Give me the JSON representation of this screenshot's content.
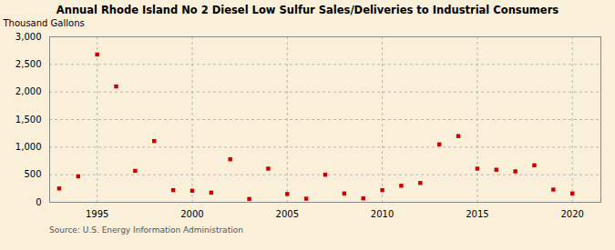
{
  "chart_data": {
    "type": "scatter",
    "title": "Annual Rhode Island No 2 Diesel Low Sulfur Sales/Deliveries to Industrial Consumers",
    "ylabel": "Thousand Gallons",
    "source": "Source: U.S. Energy Information Administration",
    "x": [
      1993,
      1994,
      1995,
      1996,
      1997,
      1998,
      1999,
      2000,
      2001,
      2002,
      2003,
      2004,
      2005,
      2006,
      2007,
      2008,
      2009,
      2010,
      2011,
      2012,
      2013,
      2014,
      2015,
      2016,
      2017,
      2018,
      2019,
      2020
    ],
    "values": [
      250,
      470,
      2680,
      2100,
      570,
      1110,
      220,
      210,
      175,
      780,
      60,
      610,
      150,
      65,
      500,
      160,
      70,
      220,
      300,
      350,
      1050,
      1200,
      610,
      590,
      560,
      670,
      230,
      160
    ],
    "color": "#cc0000",
    "marker": "square",
    "xlim": [
      1992.5,
      2021.5
    ],
    "xticks": [
      1995,
      2000,
      2005,
      2010,
      2015,
      2020
    ],
    "ylim": [
      0,
      3000
    ],
    "yticks": [
      0,
      500,
      {
        "value": 1000,
        "label": "1,000"
      },
      {
        "value": 1500,
        "label": "1,500"
      },
      {
        "value": 2000,
        "label": "2,000"
      },
      {
        "value": 2500,
        "label": "2,500"
      },
      {
        "value": 3000,
        "label": "3,000"
      }
    ],
    "grid": true
  }
}
